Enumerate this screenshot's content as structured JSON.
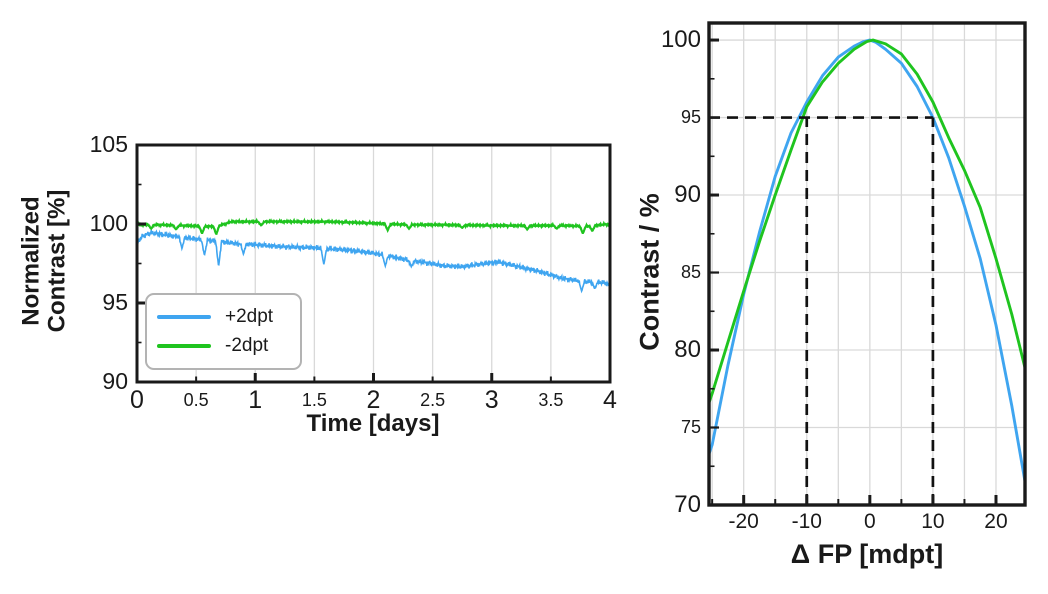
{
  "figure": {
    "background": "#ffffff"
  },
  "style": {
    "axis_color": "#1a1a1a",
    "grid_color": "#d9d9d9",
    "dash_color": "#111111"
  },
  "chart_data": [
    {
      "id": "contrast-stability",
      "type": "line",
      "title": "",
      "xlabel": "Time [days]",
      "ylabel": "Normalized Contrast [%]",
      "ylabel_lines": [
        "Normalized",
        "Contrast [%]"
      ],
      "xlim": [
        0,
        4
      ],
      "ylim": [
        90,
        105
      ],
      "x_axis": {
        "major_ticks": [
          0,
          1,
          2,
          3,
          4
        ],
        "minor_ticks": [
          0.5,
          1.5,
          2.5,
          3.5
        ],
        "gridlines": [
          0.5,
          1,
          1.5,
          2,
          2.5,
          3,
          3.5
        ]
      },
      "y_axis": {
        "major_ticks": [
          90,
          95,
          100,
          105
        ],
        "sub_ticks": [
          92.5,
          97.5,
          102.5
        ],
        "gridlines": []
      },
      "legend": {
        "position": "lower-left",
        "entries": [
          "+2dpt",
          "-2dpt"
        ]
      },
      "series": [
        {
          "name": "+2dpt",
          "color": "#3fa5f0",
          "noise_amplitude": 0.2,
          "trend": [
            [
              0,
              98.8
            ],
            [
              0.05,
              99.25
            ],
            [
              0.12,
              99.45
            ],
            [
              0.25,
              99.3
            ],
            [
              0.4,
              99.15
            ],
            [
              0.55,
              99.0
            ],
            [
              0.7,
              98.9
            ],
            [
              0.85,
              98.75
            ],
            [
              1.0,
              98.7
            ],
            [
              1.15,
              98.6
            ],
            [
              1.3,
              98.55
            ],
            [
              1.5,
              98.5
            ],
            [
              1.7,
              98.4
            ],
            [
              1.85,
              98.3
            ],
            [
              2.0,
              98.15
            ],
            [
              2.15,
              97.95
            ],
            [
              2.3,
              97.7
            ],
            [
              2.45,
              97.55
            ],
            [
              2.6,
              97.35
            ],
            [
              2.75,
              97.3
            ],
            [
              2.9,
              97.45
            ],
            [
              3.05,
              97.6
            ],
            [
              3.2,
              97.35
            ],
            [
              3.4,
              97.0
            ],
            [
              3.6,
              96.55
            ],
            [
              3.8,
              96.35
            ],
            [
              3.95,
              96.3
            ],
            [
              4.0,
              96.1
            ]
          ],
          "dips": [
            [
              0.38,
              98.45
            ],
            [
              0.57,
              98.0
            ],
            [
              0.69,
              97.3
            ],
            [
              0.9,
              98.1
            ],
            [
              1.58,
              97.45
            ],
            [
              2.1,
              97.35
            ],
            [
              2.32,
              97.3
            ],
            [
              3.76,
              95.75
            ],
            [
              3.87,
              95.9
            ]
          ]
        },
        {
          "name": "-2dpt",
          "color": "#1fc41f",
          "noise_amplitude": 0.07,
          "trend": [
            [
              0,
              99.95
            ],
            [
              0.2,
              99.95
            ],
            [
              0.4,
              99.9
            ],
            [
              0.55,
              99.85
            ],
            [
              0.68,
              99.85
            ],
            [
              0.74,
              100.0
            ],
            [
              0.8,
              100.15
            ],
            [
              1.2,
              100.15
            ],
            [
              1.6,
              100.15
            ],
            [
              2.0,
              100.05
            ],
            [
              2.3,
              99.95
            ],
            [
              2.6,
              99.95
            ],
            [
              3.0,
              99.9
            ],
            [
              3.3,
              99.9
            ],
            [
              3.6,
              99.9
            ],
            [
              3.8,
              99.85
            ],
            [
              3.92,
              99.95
            ],
            [
              4.0,
              100.0
            ]
          ],
          "dips": [
            [
              0.12,
              99.7
            ],
            [
              0.33,
              99.65
            ],
            [
              0.55,
              99.4
            ],
            [
              0.67,
              99.35
            ],
            [
              1.05,
              99.9
            ],
            [
              2.12,
              99.6
            ],
            [
              2.3,
              99.7
            ],
            [
              2.75,
              99.75
            ],
            [
              3.3,
              99.65
            ],
            [
              3.55,
              99.7
            ],
            [
              3.77,
              99.4
            ],
            [
              3.85,
              99.55
            ]
          ]
        }
      ]
    },
    {
      "id": "through-focus-contrast",
      "type": "line",
      "title": "",
      "xlabel": "Δ FP [mdpt]",
      "ylabel": "Contrast / %",
      "xlim": [
        -25.5,
        24.6
      ],
      "ylim": [
        70,
        101.1
      ],
      "x_axis": {
        "major_ticks": [
          -20,
          -10,
          0,
          10,
          20
        ],
        "minor_ticks": [
          -25,
          -15,
          -5,
          5,
          15
        ],
        "gridlines": [
          -25,
          -20,
          -15,
          -10,
          -5,
          0,
          5,
          10,
          15,
          20
        ]
      },
      "y_axis": {
        "major_ticks": [
          70,
          80,
          90,
          100
        ],
        "minor_ticks": [
          75,
          85,
          95
        ],
        "sub_ticks": [
          72.5,
          77.5,
          82.5,
          87.5,
          92.5,
          97.5
        ],
        "gridlines": [
          75,
          80,
          85,
          90,
          95,
          100
        ]
      },
      "guides": {
        "hline": {
          "y": 95,
          "x1": -25.5,
          "x2": 10
        },
        "vlines": [
          {
            "x": -10,
            "y1": 70,
            "y2": 95
          },
          {
            "x": 10,
            "y1": 70,
            "y2": 95
          }
        ]
      },
      "series": [
        {
          "name": "+2dpt",
          "color": "#3fa5f0",
          "points": [
            [
              -25.5,
              73.3
            ],
            [
              -25,
              73.9
            ],
            [
              -22.5,
              79.0
            ],
            [
              -20,
              83.6
            ],
            [
              -17.5,
              87.6
            ],
            [
              -15,
              91.2
            ],
            [
              -12.5,
              94.0
            ],
            [
              -10,
              96.0
            ],
            [
              -7.5,
              97.7
            ],
            [
              -5,
              98.9
            ],
            [
              -2.5,
              99.6
            ],
            [
              -1,
              99.9
            ],
            [
              0,
              100
            ],
            [
              1,
              99.85
            ],
            [
              2.5,
              99.4
            ],
            [
              5,
              98.5
            ],
            [
              7.5,
              97.0
            ],
            [
              10,
              95.0
            ],
            [
              12.5,
              92.4
            ],
            [
              15,
              89.3
            ],
            [
              17.5,
              85.9
            ],
            [
              20,
              81.6
            ],
            [
              22.5,
              76.4
            ],
            [
              25,
              70.6
            ]
          ]
        },
        {
          "name": "-2dpt",
          "color": "#1fc41f",
          "points": [
            [
              -25.5,
              76.6
            ],
            [
              -25,
              77.2
            ],
            [
              -22.5,
              80.5
            ],
            [
              -20,
              83.8
            ],
            [
              -17.5,
              87.0
            ],
            [
              -15,
              90.0
            ],
            [
              -12.5,
              92.9
            ],
            [
              -10,
              95.7
            ],
            [
              -7.5,
              97.3
            ],
            [
              -5,
              98.5
            ],
            [
              -2.5,
              99.4
            ],
            [
              -0.5,
              99.9
            ],
            [
              0.5,
              100
            ],
            [
              2.5,
              99.75
            ],
            [
              5,
              99.1
            ],
            [
              7.5,
              97.8
            ],
            [
              10,
              96.0
            ],
            [
              12.5,
              93.7
            ],
            [
              15,
              91.6
            ],
            [
              17.5,
              89.2
            ],
            [
              20,
              85.9
            ],
            [
              22.5,
              82.3
            ],
            [
              25,
              78.2
            ]
          ]
        }
      ]
    }
  ]
}
